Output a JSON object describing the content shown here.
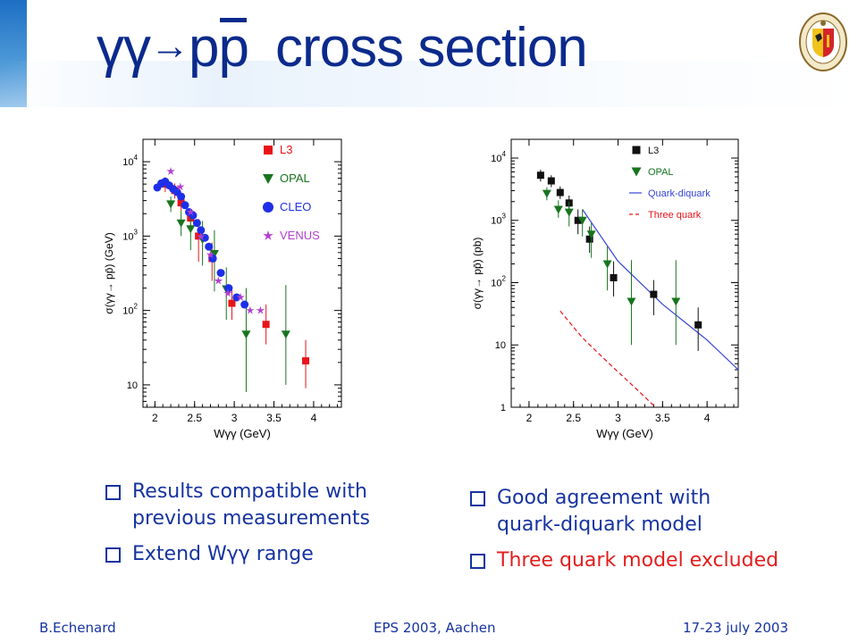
{
  "slide": {
    "title_prefix": "γγ",
    "title_arrow": "→",
    "title_p1": "p",
    "title_p2": "p",
    "title_rest": "cross section",
    "footer": {
      "left": "B.Echenard",
      "center": "EPS 2003, Aachen",
      "right": "17-23 july 2003"
    },
    "bullets_left": [
      {
        "line1": "Results compatible with",
        "line2": "previous measurements"
      },
      {
        "line1": "Extend Wγγ range",
        "line2": ""
      }
    ],
    "bullets_right": [
      {
        "line1": "Good agreement  with",
        "line2": "quark-diquark model"
      },
      {
        "line1": "Three quark model excluded",
        "line2": ""
      }
    ],
    "colors": {
      "title": "#0b2a8c",
      "text": "#1633a0",
      "red_text": "#e41d1d"
    }
  },
  "chart_data": [
    {
      "type": "scatter",
      "xlabel": "Wγγ (GeV)",
      "ylabel": "σ(γγ→ pp̄) (GeV)",
      "xlim": [
        1.85,
        4.35
      ],
      "ylim": [
        5,
        20000
      ],
      "log_y": true,
      "x_ticks": [
        "2",
        "2.5",
        "3",
        "3.5",
        "4"
      ],
      "y_ticks": [
        "10",
        "10 2",
        "10 3",
        "10 4"
      ],
      "legend_placement": "top-right",
      "series": [
        {
          "name": "L3",
          "marker": "square",
          "color": "#e8131a",
          "points": [
            [
              2.13,
              5000
            ],
            [
              2.25,
              4100
            ],
            [
              2.33,
              2800
            ],
            [
              2.45,
              1750
            ],
            [
              2.55,
              1000
            ],
            [
              2.72,
              500
            ],
            [
              2.97,
              125
            ],
            [
              3.4,
              65
            ],
            [
              3.9,
              21
            ]
          ],
          "err": [
            [
              3900,
              6200
            ],
            [
              3200,
              5100
            ],
            [
              2200,
              3500
            ],
            [
              1350,
              2300
            ],
            [
              450,
              1700
            ],
            [
              250,
              820
            ],
            [
              75,
              190
            ],
            [
              35,
              120
            ],
            [
              9,
              40
            ]
          ]
        },
        {
          "name": "OPAL",
          "marker": "triangle",
          "color": "#17751f",
          "points": [
            [
              2.2,
              2700
            ],
            [
              2.33,
              1500
            ],
            [
              2.45,
              1250
            ],
            [
              2.6,
              900
            ],
            [
              2.75,
              580
            ],
            [
              2.9,
              195
            ],
            [
              3.15,
              48
            ],
            [
              3.65,
              48
            ]
          ],
          "err": [
            [
              2100,
              3400
            ],
            [
              1000,
              2200
            ],
            [
              650,
              2100
            ],
            [
              400,
              1600
            ],
            [
              180,
              1200
            ],
            [
              75,
              380
            ],
            [
              8,
              200
            ],
            [
              10,
              220
            ]
          ]
        },
        {
          "name": "CLEO",
          "marker": "circle",
          "color": "#1e2fe8",
          "points": [
            [
              2.03,
              4500
            ],
            [
              2.08,
              5100
            ],
            [
              2.13,
              5400
            ],
            [
              2.18,
              4800
            ],
            [
              2.23,
              4300
            ],
            [
              2.28,
              3900
            ],
            [
              2.33,
              3400
            ],
            [
              2.38,
              2600
            ],
            [
              2.43,
              2100
            ],
            [
              2.48,
              1900
            ],
            [
              2.53,
              1500
            ],
            [
              2.58,
              1200
            ],
            [
              2.63,
              950
            ],
            [
              2.68,
              720
            ],
            [
              2.73,
              500
            ],
            [
              2.83,
              320
            ],
            [
              2.93,
              200
            ],
            [
              3.03,
              150
            ],
            [
              3.13,
              120
            ]
          ],
          "err": []
        },
        {
          "name": "VENUS",
          "marker": "star",
          "color": "#b23fd0",
          "points": [
            [
              2.2,
              7400
            ],
            [
              2.32,
              4600
            ],
            [
              2.45,
              2100
            ],
            [
              2.58,
              980
            ],
            [
              2.7,
              560
            ],
            [
              2.8,
              250
            ],
            [
              2.92,
              170
            ],
            [
              3.08,
              150
            ],
            [
              3.2,
              100
            ],
            [
              3.33,
              100
            ]
          ],
          "err": []
        }
      ]
    },
    {
      "type": "scatter",
      "xlabel": "Wγγ (GeV)",
      "ylabel": "σ(γγ→ pp̄) (pb)",
      "xlim": [
        1.8,
        4.35
      ],
      "ylim": [
        1,
        20000
      ],
      "log_y": true,
      "x_ticks": [
        "2",
        "2.5",
        "3",
        "3.5",
        "4"
      ],
      "y_ticks": [
        "1",
        "10",
        "10 2",
        "10 3",
        "10 4"
      ],
      "legend_placement": "top-right",
      "series": [
        {
          "name": "L3",
          "marker": "square",
          "color": "#111111",
          "points": [
            [
              2.13,
              5300
            ],
            [
              2.25,
              4300
            ],
            [
              2.35,
              2800
            ],
            [
              2.45,
              1900
            ],
            [
              2.55,
              1000
            ],
            [
              2.68,
              500
            ],
            [
              2.95,
              120
            ],
            [
              3.4,
              65
            ],
            [
              3.9,
              21
            ]
          ],
          "err": [
            [
              4200,
              6500
            ],
            [
              3400,
              5300
            ],
            [
              2200,
              3500
            ],
            [
              1400,
              2500
            ],
            [
              600,
              1500
            ],
            [
              300,
              800
            ],
            [
              60,
              220
            ],
            [
              30,
              110
            ],
            [
              8,
              40
            ]
          ]
        },
        {
          "name": "OPAL",
          "marker": "triangle",
          "color": "#17751f",
          "points": [
            [
              2.2,
              2700
            ],
            [
              2.33,
              1500
            ],
            [
              2.45,
              1350
            ],
            [
              2.6,
              1000
            ],
            [
              2.7,
              600
            ],
            [
              2.88,
              200
            ],
            [
              3.15,
              50
            ],
            [
              3.65,
              50
            ]
          ],
          "err": [
            [
              2100,
              3400
            ],
            [
              1100,
              2100
            ],
            [
              800,
              2000
            ],
            [
              550,
              1500
            ],
            [
              250,
              900
            ],
            [
              75,
              380
            ],
            [
              10,
              230
            ],
            [
              10,
              230
            ]
          ]
        }
      ],
      "curves": [
        {
          "name": "Quark-diquark",
          "style": "solid",
          "color": "#3345d6",
          "points": [
            [
              2.6,
              1500
            ],
            [
              3.0,
              220
            ],
            [
              3.5,
              45
            ],
            [
              4.0,
              12
            ],
            [
              4.35,
              4
            ]
          ]
        },
        {
          "name": "Three quark",
          "style": "dashed",
          "color": "#e8131a",
          "points": [
            [
              2.35,
              35
            ],
            [
              2.6,
              13
            ],
            [
              2.9,
              5
            ],
            [
              3.2,
              2
            ],
            [
              3.42,
              1
            ]
          ]
        }
      ]
    }
  ]
}
